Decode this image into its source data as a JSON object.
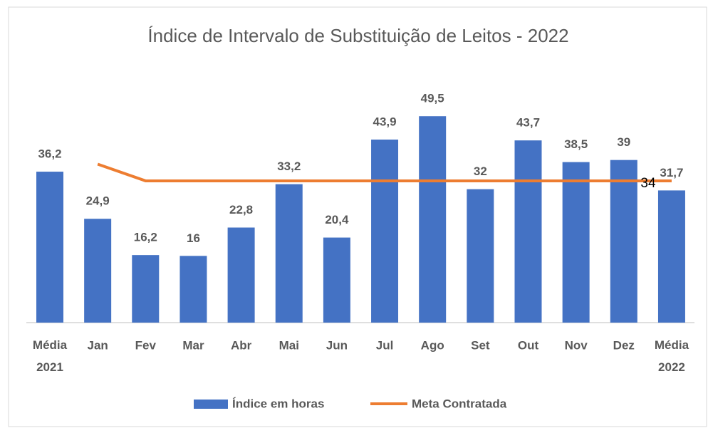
{
  "chart_data": {
    "type": "bar-line",
    "title": "Índice de Intervalo de Substituição de Leitos - 2022",
    "categories": [
      "Média 2021",
      "Jan",
      "Fev",
      "Mar",
      "Abr",
      "Mai",
      "Jun",
      "Jul",
      "Ago",
      "Set",
      "Out",
      "Nov",
      "Dez",
      "Média 2022"
    ],
    "ylim": [
      0,
      55
    ],
    "legend": "bottom",
    "series": [
      {
        "name": "Índice em horas",
        "type": "bar",
        "color": "#4472c4",
        "values": [
          36.2,
          24.9,
          16.2,
          16,
          22.8,
          33.2,
          20.4,
          43.9,
          49.5,
          32,
          43.7,
          38.5,
          39,
          31.7
        ],
        "value_labels": [
          "36,2",
          "24,9",
          "16,2",
          "16",
          "22,8",
          "33,2",
          "20,4",
          "43,9",
          "49,5",
          "32",
          "43,7",
          "38,5",
          "39",
          "31,7"
        ]
      },
      {
        "name": "Meta Contratada",
        "type": "line",
        "color": "#ed7d31",
        "values": [
          null,
          38,
          34,
          34,
          34,
          34,
          34,
          34,
          34,
          34,
          34,
          34,
          34,
          34
        ],
        "value_labels": [
          null,
          null,
          null,
          null,
          null,
          null,
          null,
          null,
          null,
          null,
          null,
          null,
          null,
          "34"
        ]
      }
    ]
  }
}
